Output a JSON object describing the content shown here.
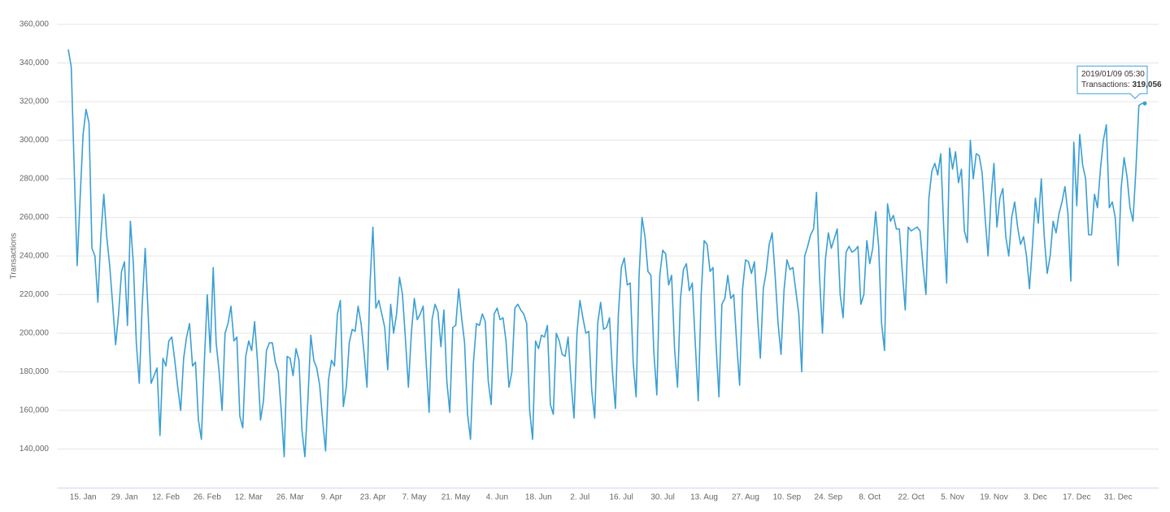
{
  "chart_data": {
    "type": "line",
    "ylabel": "Transactions",
    "ylim": [
      120000,
      360000
    ],
    "yticks": [
      {
        "value": 140000,
        "label": "140,000"
      },
      {
        "value": 160000,
        "label": "160,000"
      },
      {
        "value": 180000,
        "label": "180,000"
      },
      {
        "value": 200000,
        "label": "200,000"
      },
      {
        "value": 220000,
        "label": "220,000"
      },
      {
        "value": 240000,
        "label": "240,000"
      },
      {
        "value": 260000,
        "label": "260,000"
      },
      {
        "value": 280000,
        "label": "280,000"
      },
      {
        "value": 300000,
        "label": "300,000"
      },
      {
        "value": 320000,
        "label": "320,000"
      },
      {
        "value": 340000,
        "label": "340,000"
      },
      {
        "value": 360000,
        "label": "360,000"
      }
    ],
    "grid": true,
    "categories": [
      null,
      null,
      null,
      null,
      null,
      "15. Jan",
      null,
      null,
      null,
      null,
      null,
      null,
      null,
      null,
      null,
      null,
      null,
      null,
      null,
      "29. Jan",
      null,
      null,
      null,
      null,
      null,
      null,
      null,
      null,
      null,
      null,
      null,
      null,
      null,
      "12. Feb",
      null,
      null,
      null,
      null,
      null,
      null,
      null,
      null,
      null,
      null,
      null,
      null,
      null,
      "26. Feb",
      null,
      null,
      null,
      null,
      null,
      null,
      null,
      null,
      null,
      null,
      null,
      null,
      null,
      "12. Mar",
      null,
      null,
      null,
      null,
      null,
      null,
      null,
      null,
      null,
      null,
      null,
      null,
      null,
      "26. Mar",
      null,
      null,
      null,
      null,
      null,
      null,
      null,
      null,
      null,
      null,
      null,
      null,
      null,
      "9. Apr",
      null,
      null,
      null,
      null,
      null,
      null,
      null,
      null,
      null,
      null,
      null,
      null,
      null,
      "23. Apr",
      null,
      null,
      null,
      null,
      null,
      null,
      null,
      null,
      null,
      null,
      null,
      null,
      null,
      "7. May",
      null,
      null,
      null,
      null,
      null,
      null,
      null,
      null,
      null,
      null,
      null,
      null,
      null,
      "21. May",
      null,
      null,
      null,
      null,
      null,
      null,
      null,
      null,
      null,
      null,
      null,
      null,
      null,
      "4. Jun",
      null,
      null,
      null,
      null,
      null,
      null,
      null,
      null,
      null,
      null,
      null,
      null,
      null,
      "18. Jun",
      null,
      null,
      null,
      null,
      null,
      null,
      null,
      null,
      null,
      null,
      null,
      null,
      null,
      "2. Jul",
      null,
      null,
      null,
      null,
      null,
      null,
      null,
      null,
      null,
      null,
      null,
      null,
      null,
      "16. Jul",
      null,
      null,
      null,
      null,
      null,
      null,
      null,
      null,
      null,
      null,
      null,
      null,
      null,
      "30. Jul",
      null,
      null,
      null,
      null,
      null,
      null,
      null,
      null,
      null,
      null,
      null,
      null,
      null,
      "13. Aug",
      null,
      null,
      null,
      null,
      null,
      null,
      null,
      null,
      null,
      null,
      null,
      null,
      null,
      "27. Aug",
      null,
      null,
      null,
      null,
      null,
      null,
      null,
      null,
      null,
      null,
      null,
      null,
      null,
      "10. Sep",
      null,
      null,
      null,
      null,
      null,
      null,
      null,
      null,
      null,
      null,
      null,
      null,
      null,
      "24. Sep",
      null,
      null,
      null,
      null,
      null,
      null,
      null,
      null,
      null,
      null,
      null,
      null,
      null,
      "8. Oct",
      null,
      null,
      null,
      null,
      null,
      null,
      null,
      null,
      null,
      null,
      null,
      null,
      null,
      "22. Oct",
      null,
      null,
      null,
      null,
      null,
      null,
      null,
      null,
      null,
      null,
      null,
      null,
      null,
      "5. Nov",
      null,
      null,
      null,
      null,
      null,
      null,
      null,
      null,
      null,
      null,
      null,
      null,
      null,
      "19. Nov",
      null,
      null,
      null,
      null,
      null,
      null,
      null,
      null,
      null,
      null,
      null,
      null,
      null,
      "3. Dec",
      null,
      null,
      null,
      null,
      null,
      null,
      null,
      null,
      null,
      null,
      null,
      null,
      null,
      "17. Dec",
      null,
      null,
      null,
      null,
      null,
      null,
      null,
      null,
      null,
      null,
      null,
      null,
      null,
      "31. Dec",
      null,
      null,
      null,
      null,
      null,
      null,
      null,
      null,
      null
    ],
    "series": [
      {
        "name": "Transactions",
        "color": "#3a9fd4",
        "values": [
          347000,
          338000,
          285000,
          235000,
          270000,
          303000,
          316000,
          309000,
          244000,
          240000,
          216000,
          250000,
          272000,
          250000,
          235000,
          215000,
          194000,
          210000,
          232000,
          237000,
          204000,
          258000,
          236000,
          195000,
          174000,
          215000,
          244000,
          210000,
          174000,
          178000,
          182000,
          147000,
          187000,
          183000,
          196000,
          198000,
          186000,
          172000,
          160000,
          187000,
          198000,
          205000,
          183000,
          185000,
          155000,
          145000,
          185000,
          220000,
          190000,
          234000,
          195000,
          180000,
          160000,
          200000,
          205000,
          214000,
          196000,
          198000,
          157000,
          151000,
          188000,
          196000,
          191000,
          206000,
          185000,
          155000,
          165000,
          191000,
          195000,
          195000,
          185000,
          180000,
          160000,
          136000,
          188000,
          187000,
          178000,
          192000,
          186000,
          150000,
          136000,
          165000,
          199000,
          186000,
          182000,
          173000,
          155000,
          139000,
          176000,
          186000,
          183000,
          210000,
          217000,
          162000,
          172000,
          195000,
          202000,
          201000,
          214000,
          205000,
          190000,
          172000,
          225000,
          255000,
          213000,
          217000,
          210000,
          203000,
          181000,
          215000,
          200000,
          210000,
          229000,
          220000,
          197000,
          172000,
          200000,
          218000,
          207000,
          210000,
          214000,
          185000,
          159000,
          207000,
          215000,
          211000,
          193000,
          212000,
          175000,
          159000,
          203000,
          204000,
          223000,
          208000,
          195000,
          158000,
          145000,
          185000,
          205000,
          204000,
          210000,
          206000,
          175000,
          163000,
          210000,
          213000,
          207000,
          208000,
          196000,
          172000,
          180000,
          213000,
          215000,
          212000,
          210000,
          205000,
          160000,
          145000,
          196000,
          192000,
          199000,
          198000,
          204000,
          163000,
          158000,
          200000,
          196000,
          189000,
          188000,
          198000,
          175000,
          156000,
          200000,
          217000,
          208000,
          200000,
          201000,
          170000,
          156000,
          205000,
          216000,
          202000,
          203000,
          208000,
          180000,
          161000,
          210000,
          234000,
          239000,
          225000,
          226000,
          185000,
          167000,
          230000,
          260000,
          250000,
          232000,
          230000,
          190000,
          168000,
          230000,
          243000,
          241000,
          225000,
          230000,
          192000,
          172000,
          218000,
          233000,
          236000,
          222000,
          226000,
          195000,
          165000,
          220000,
          248000,
          246000,
          232000,
          234000,
          195000,
          167000,
          215000,
          218000,
          230000,
          218000,
          220000,
          195000,
          173000,
          223000,
          238000,
          237000,
          231000,
          237000,
          210000,
          187000,
          223000,
          232000,
          246000,
          252000,
          230000,
          205000,
          189000,
          222000,
          238000,
          233000,
          234000,
          222000,
          210000,
          180000,
          240000,
          245000,
          251000,
          254000,
          273000,
          230000,
          200000,
          238000,
          252000,
          244000,
          249000,
          254000,
          220000,
          208000,
          242000,
          245000,
          242000,
          243000,
          245000,
          215000,
          220000,
          248000,
          236000,
          244000,
          263000,
          245000,
          205000,
          191000,
          267000,
          258000,
          261000,
          254000,
          254000,
          232000,
          212000,
          255000,
          253000,
          254000,
          255000,
          253000,
          235000,
          220000,
          270000,
          284000,
          288000,
          282000,
          293000,
          255000,
          226000,
          296000,
          285000,
          294000,
          278000,
          285000,
          253000,
          247000,
          300000,
          280000,
          293000,
          292000,
          283000,
          260000,
          240000,
          270000,
          288000,
          255000,
          270000,
          275000,
          250000,
          240000,
          260000,
          268000,
          255000,
          246000,
          250000,
          240000,
          223000,
          245000,
          270000,
          257000,
          280000,
          250000,
          231000,
          240000,
          258000,
          252000,
          262000,
          268000,
          276000,
          262000,
          227000,
          299000,
          266000,
          303000,
          287000,
          280000,
          251000,
          251000,
          272000,
          265000,
          285000,
          300000,
          308000,
          265000,
          268000,
          260000,
          235000,
          275000,
          291000,
          281000,
          265000,
          258000,
          285000,
          318000,
          319000,
          319056
        ]
      }
    ],
    "tooltip": {
      "title": "2019/01/09 05:30",
      "name": "Transactions",
      "value": 319056,
      "value_label": "319,056"
    }
  }
}
